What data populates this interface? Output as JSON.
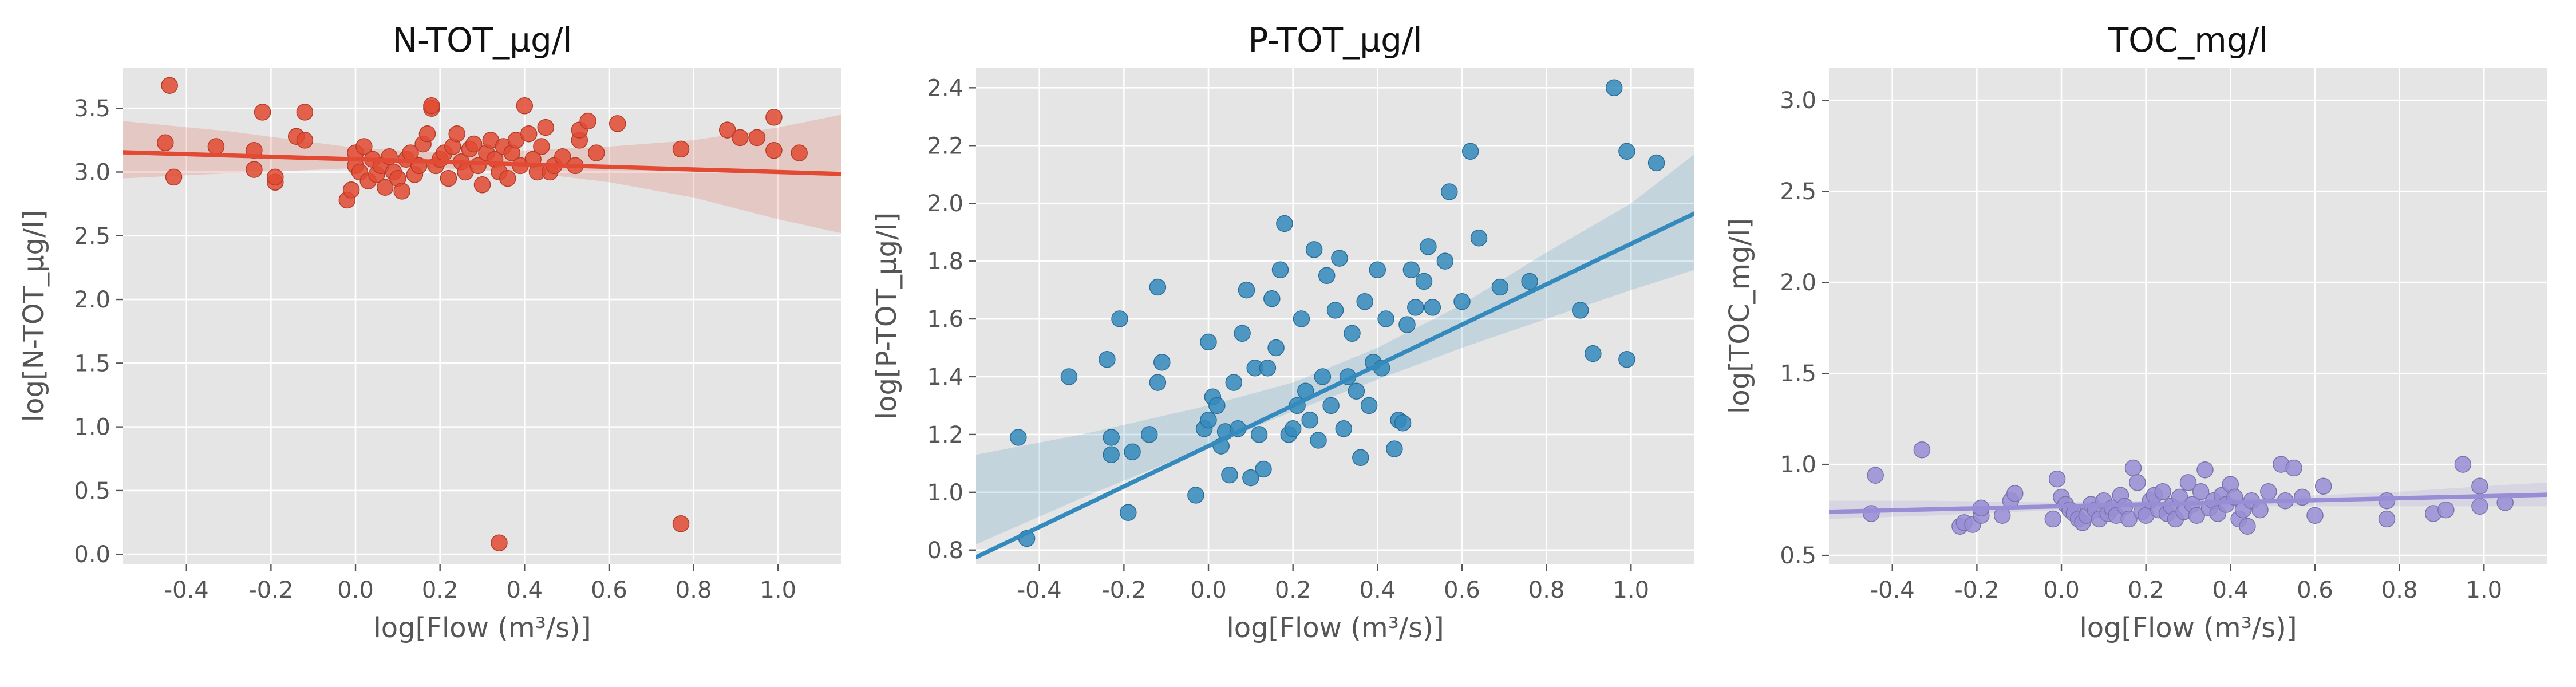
{
  "figure": {
    "background": "#ffffff",
    "panel_background": "#e5e5e5",
    "grid_color": "#ffffff"
  },
  "chart_data": [
    {
      "type": "scatter",
      "title": "N-TOT_µg/l",
      "xlabel": "log[Flow (m³/s)]",
      "ylabel": "log[N-TOT_µg/l]",
      "xlim": [
        -0.55,
        1.15
      ],
      "ylim": [
        -0.08,
        3.82
      ],
      "x_ticks": [
        "-0.4",
        "-0.2",
        "0.0",
        "0.2",
        "0.4",
        "0.6",
        "0.8",
        "1.0"
      ],
      "y_ticks": [
        "0.0",
        "0.5",
        "1.0",
        "1.5",
        "2.0",
        "2.5",
        "3.0",
        "3.5"
      ],
      "color": "#e24a33",
      "grid": true,
      "regression": {
        "intercept": 3.1,
        "slope": -0.1
      },
      "ci_band": {
        "x": [
          -0.55,
          -0.3,
          0.0,
          0.2,
          0.4,
          0.6,
          0.8,
          1.0,
          1.15
        ],
        "lower": [
          2.95,
          2.99,
          3.03,
          3.03,
          3.0,
          2.92,
          2.8,
          2.63,
          2.52
        ],
        "upper": [
          3.4,
          3.32,
          3.19,
          3.15,
          3.17,
          3.2,
          3.25,
          3.35,
          3.45
        ]
      },
      "points": [
        [
          -0.44,
          3.68
        ],
        [
          -0.45,
          3.23
        ],
        [
          -0.43,
          2.96
        ],
        [
          -0.33,
          3.2
        ],
        [
          -0.24,
          3.17
        ],
        [
          -0.24,
          3.02
        ],
        [
          -0.22,
          3.47
        ],
        [
          -0.19,
          2.92
        ],
        [
          -0.19,
          2.96
        ],
        [
          -0.14,
          3.28
        ],
        [
          -0.12,
          3.25
        ],
        [
          -0.12,
          3.47
        ],
        [
          -0.02,
          2.78
        ],
        [
          -0.01,
          2.86
        ],
        [
          0.0,
          3.15
        ],
        [
          0.0,
          3.05
        ],
        [
          0.01,
          3.0
        ],
        [
          0.02,
          3.2
        ],
        [
          0.03,
          2.93
        ],
        [
          0.04,
          3.1
        ],
        [
          0.05,
          2.98
        ],
        [
          0.06,
          3.05
        ],
        [
          0.07,
          2.88
        ],
        [
          0.08,
          3.12
        ],
        [
          0.09,
          3.0
        ],
        [
          0.1,
          2.95
        ],
        [
          0.11,
          2.85
        ],
        [
          0.12,
          3.1
        ],
        [
          0.13,
          3.15
        ],
        [
          0.14,
          2.98
        ],
        [
          0.15,
          3.05
        ],
        [
          0.16,
          3.22
        ],
        [
          0.17,
          3.3
        ],
        [
          0.18,
          3.5
        ],
        [
          0.18,
          3.52
        ],
        [
          0.19,
          3.05
        ],
        [
          0.2,
          3.1
        ],
        [
          0.21,
          3.15
        ],
        [
          0.22,
          2.95
        ],
        [
          0.23,
          3.2
        ],
        [
          0.24,
          3.3
        ],
        [
          0.25,
          3.08
        ],
        [
          0.26,
          3.0
        ],
        [
          0.27,
          3.18
        ],
        [
          0.28,
          3.22
        ],
        [
          0.29,
          3.05
        ],
        [
          0.3,
          2.9
        ],
        [
          0.31,
          3.15
        ],
        [
          0.32,
          3.25
        ],
        [
          0.33,
          3.1
        ],
        [
          0.34,
          3.0
        ],
        [
          0.35,
          3.2
        ],
        [
          0.36,
          2.95
        ],
        [
          0.37,
          3.15
        ],
        [
          0.38,
          3.25
        ],
        [
          0.39,
          3.05
        ],
        [
          0.4,
          3.52
        ],
        [
          0.41,
          3.3
        ],
        [
          0.42,
          3.1
        ],
        [
          0.43,
          3.0
        ],
        [
          0.44,
          3.2
        ],
        [
          0.45,
          3.35
        ],
        [
          0.46,
          3.0
        ],
        [
          0.47,
          3.05
        ],
        [
          0.49,
          3.12
        ],
        [
          0.52,
          3.05
        ],
        [
          0.53,
          3.25
        ],
        [
          0.53,
          3.33
        ],
        [
          0.55,
          3.4
        ],
        [
          0.57,
          3.15
        ],
        [
          0.62,
          3.38
        ],
        [
          0.77,
          3.18
        ],
        [
          0.88,
          3.33
        ],
        [
          0.91,
          3.27
        ],
        [
          0.95,
          3.27
        ],
        [
          0.99,
          3.43
        ],
        [
          0.99,
          3.17
        ],
        [
          1.05,
          3.15
        ],
        [
          0.34,
          0.09
        ],
        [
          0.77,
          0.24
        ]
      ]
    },
    {
      "type": "scatter",
      "title": "P-TOT_µg/l",
      "xlabel": "log[Flow (m³/s)]",
      "ylabel": "log[P-TOT_µg/l]",
      "xlim": [
        -0.55,
        1.15
      ],
      "ylim": [
        0.75,
        2.47
      ],
      "x_ticks": [
        "-0.4",
        "-0.2",
        "0.0",
        "0.2",
        "0.4",
        "0.6",
        "0.8",
        "1.0"
      ],
      "y_ticks": [
        "0.8",
        "1.0",
        "1.2",
        "1.4",
        "1.6",
        "1.8",
        "2.0",
        "2.2",
        "2.4"
      ],
      "color": "#348abd",
      "grid": true,
      "regression": {
        "intercept": 1.16,
        "slope": 0.7
      },
      "ci_band": {
        "x": [
          -0.55,
          -0.3,
          0.0,
          0.2,
          0.4,
          0.6,
          0.8,
          1.0,
          1.15
        ],
        "lower": [
          0.82,
          0.98,
          1.16,
          1.28,
          1.39,
          1.5,
          1.6,
          1.7,
          1.77
        ],
        "upper": [
          1.13,
          1.2,
          1.3,
          1.38,
          1.5,
          1.65,
          1.83,
          2.0,
          2.17
        ]
      },
      "points": [
        [
          -0.45,
          1.19
        ],
        [
          -0.43,
          0.84
        ],
        [
          -0.33,
          1.4
        ],
        [
          -0.24,
          1.46
        ],
        [
          -0.23,
          1.19
        ],
        [
          -0.23,
          1.13
        ],
        [
          -0.21,
          1.6
        ],
        [
          -0.19,
          0.93
        ],
        [
          -0.18,
          1.14
        ],
        [
          -0.14,
          1.2
        ],
        [
          -0.12,
          1.38
        ],
        [
          -0.12,
          1.71
        ],
        [
          -0.11,
          1.45
        ],
        [
          -0.03,
          0.99
        ],
        [
          -0.01,
          1.22
        ],
        [
          0.0,
          1.52
        ],
        [
          0.0,
          1.25
        ],
        [
          0.01,
          1.33
        ],
        [
          0.02,
          1.3
        ],
        [
          0.03,
          1.16
        ],
        [
          0.04,
          1.21
        ],
        [
          0.05,
          1.06
        ],
        [
          0.06,
          1.38
        ],
        [
          0.07,
          1.22
        ],
        [
          0.08,
          1.55
        ],
        [
          0.09,
          1.7
        ],
        [
          0.1,
          1.05
        ],
        [
          0.11,
          1.43
        ],
        [
          0.12,
          1.2
        ],
        [
          0.13,
          1.08
        ],
        [
          0.14,
          1.43
        ],
        [
          0.15,
          1.67
        ],
        [
          0.16,
          1.5
        ],
        [
          0.17,
          1.77
        ],
        [
          0.18,
          1.93
        ],
        [
          0.19,
          1.2
        ],
        [
          0.2,
          1.22
        ],
        [
          0.21,
          1.3
        ],
        [
          0.22,
          1.6
        ],
        [
          0.23,
          1.35
        ],
        [
          0.24,
          1.25
        ],
        [
          0.25,
          1.84
        ],
        [
          0.26,
          1.18
        ],
        [
          0.27,
          1.4
        ],
        [
          0.28,
          1.75
        ],
        [
          0.29,
          1.3
        ],
        [
          0.3,
          1.63
        ],
        [
          0.31,
          1.81
        ],
        [
          0.32,
          1.22
        ],
        [
          0.33,
          1.4
        ],
        [
          0.34,
          1.55
        ],
        [
          0.35,
          1.35
        ],
        [
          0.36,
          1.12
        ],
        [
          0.37,
          1.66
        ],
        [
          0.38,
          1.3
        ],
        [
          0.39,
          1.45
        ],
        [
          0.4,
          1.77
        ],
        [
          0.41,
          1.43
        ],
        [
          0.42,
          1.6
        ],
        [
          0.44,
          1.15
        ],
        [
          0.45,
          1.25
        ],
        [
          0.46,
          1.24
        ],
        [
          0.47,
          1.58
        ],
        [
          0.48,
          1.77
        ],
        [
          0.49,
          1.64
        ],
        [
          0.51,
          1.73
        ],
        [
          0.52,
          1.85
        ],
        [
          0.53,
          1.64
        ],
        [
          0.56,
          1.8
        ],
        [
          0.57,
          2.04
        ],
        [
          0.6,
          1.66
        ],
        [
          0.62,
          2.18
        ],
        [
          0.64,
          1.88
        ],
        [
          0.69,
          1.71
        ],
        [
          0.76,
          1.73
        ],
        [
          0.88,
          1.63
        ],
        [
          0.91,
          1.48
        ],
        [
          0.96,
          2.4
        ],
        [
          0.99,
          2.18
        ],
        [
          0.99,
          1.46
        ],
        [
          1.06,
          2.14
        ]
      ]
    },
    {
      "type": "scatter",
      "title": "TOC_mg/l",
      "xlabel": "log[Flow (m³/s)]",
      "ylabel": "log[TOC_mg/l]",
      "xlim": [
        -0.55,
        1.15
      ],
      "ylim": [
        0.45,
        3.18
      ],
      "x_ticks": [
        "-0.4",
        "-0.2",
        "0.0",
        "0.2",
        "0.4",
        "0.6",
        "0.8",
        "1.0"
      ],
      "y_ticks": [
        "0.5",
        "1.0",
        "1.5",
        "2.0",
        "2.5",
        "3.0"
      ],
      "color": "#988ed5",
      "grid": true,
      "regression": {
        "intercept": 0.77,
        "slope": 0.055
      },
      "ci_band": {
        "x": [
          -0.55,
          -0.3,
          0.0,
          0.2,
          0.4,
          0.6,
          0.8,
          1.0,
          1.15
        ],
        "lower": [
          0.7,
          0.72,
          0.75,
          0.76,
          0.77,
          0.77,
          0.77,
          0.77,
          0.77
        ],
        "upper": [
          0.8,
          0.8,
          0.79,
          0.8,
          0.81,
          0.83,
          0.85,
          0.88,
          0.9
        ]
      },
      "points": [
        [
          -0.45,
          0.73
        ],
        [
          -0.44,
          0.94
        ],
        [
          -0.33,
          1.08
        ],
        [
          -0.24,
          0.66
        ],
        [
          -0.23,
          0.68
        ],
        [
          -0.21,
          0.67
        ],
        [
          -0.19,
          0.72
        ],
        [
          -0.19,
          0.76
        ],
        [
          -0.14,
          0.72
        ],
        [
          -0.12,
          0.8
        ],
        [
          -0.11,
          0.84
        ],
        [
          -0.02,
          0.7
        ],
        [
          -0.01,
          0.92
        ],
        [
          0.0,
          0.82
        ],
        [
          0.01,
          0.78
        ],
        [
          0.02,
          0.75
        ],
        [
          0.03,
          0.73
        ],
        [
          0.04,
          0.7
        ],
        [
          0.05,
          0.68
        ],
        [
          0.06,
          0.72
        ],
        [
          0.07,
          0.78
        ],
        [
          0.08,
          0.75
        ],
        [
          0.09,
          0.7
        ],
        [
          0.1,
          0.8
        ],
        [
          0.11,
          0.73
        ],
        [
          0.12,
          0.76
        ],
        [
          0.13,
          0.72
        ],
        [
          0.14,
          0.83
        ],
        [
          0.15,
          0.77
        ],
        [
          0.16,
          0.7
        ],
        [
          0.17,
          0.98
        ],
        [
          0.18,
          0.9
        ],
        [
          0.19,
          0.74
        ],
        [
          0.2,
          0.72
        ],
        [
          0.21,
          0.8
        ],
        [
          0.22,
          0.83
        ],
        [
          0.23,
          0.75
        ],
        [
          0.24,
          0.85
        ],
        [
          0.25,
          0.73
        ],
        [
          0.26,
          0.77
        ],
        [
          0.27,
          0.7
        ],
        [
          0.28,
          0.82
        ],
        [
          0.29,
          0.74
        ],
        [
          0.3,
          0.9
        ],
        [
          0.31,
          0.78
        ],
        [
          0.32,
          0.72
        ],
        [
          0.33,
          0.85
        ],
        [
          0.34,
          0.97
        ],
        [
          0.35,
          0.76
        ],
        [
          0.36,
          0.8
        ],
        [
          0.37,
          0.73
        ],
        [
          0.38,
          0.83
        ],
        [
          0.39,
          0.78
        ],
        [
          0.4,
          0.89
        ],
        [
          0.41,
          0.82
        ],
        [
          0.42,
          0.7
        ],
        [
          0.43,
          0.75
        ],
        [
          0.44,
          0.66
        ],
        [
          0.45,
          0.8
        ],
        [
          0.47,
          0.75
        ],
        [
          0.49,
          0.85
        ],
        [
          0.52,
          1.0
        ],
        [
          0.53,
          0.8
        ],
        [
          0.55,
          0.98
        ],
        [
          0.57,
          0.82
        ],
        [
          0.6,
          0.72
        ],
        [
          0.62,
          0.88
        ],
        [
          0.77,
          0.8
        ],
        [
          0.77,
          0.7
        ],
        [
          0.88,
          0.73
        ],
        [
          0.91,
          0.75
        ],
        [
          0.95,
          1.0
        ],
        [
          0.99,
          0.88
        ],
        [
          0.99,
          0.77
        ],
        [
          1.05,
          0.79
        ]
      ]
    }
  ]
}
